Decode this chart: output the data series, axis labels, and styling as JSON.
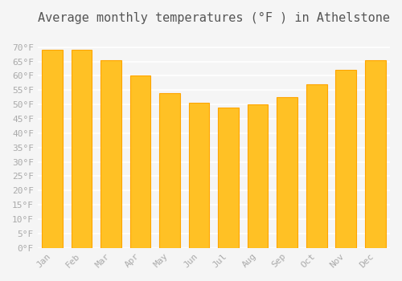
{
  "title": "Average monthly temperatures (°F ) in Athelstone",
  "months": [
    "Jan",
    "Feb",
    "Mar",
    "Apr",
    "May",
    "Jun",
    "Jul",
    "Aug",
    "Sep",
    "Oct",
    "Nov",
    "Dec"
  ],
  "values": [
    69,
    69,
    65.5,
    60,
    54,
    50.5,
    49,
    50,
    52.5,
    57,
    62,
    65.5
  ],
  "bar_color": "#FFC125",
  "bar_edge_color": "#FFA500",
  "ylim": [
    0,
    75
  ],
  "yticks": [
    0,
    5,
    10,
    15,
    20,
    25,
    30,
    35,
    40,
    45,
    50,
    55,
    60,
    65,
    70
  ],
  "background_color": "#f5f5f5",
  "grid_color": "#ffffff",
  "title_fontsize": 11,
  "tick_fontsize": 8,
  "font_family": "monospace"
}
